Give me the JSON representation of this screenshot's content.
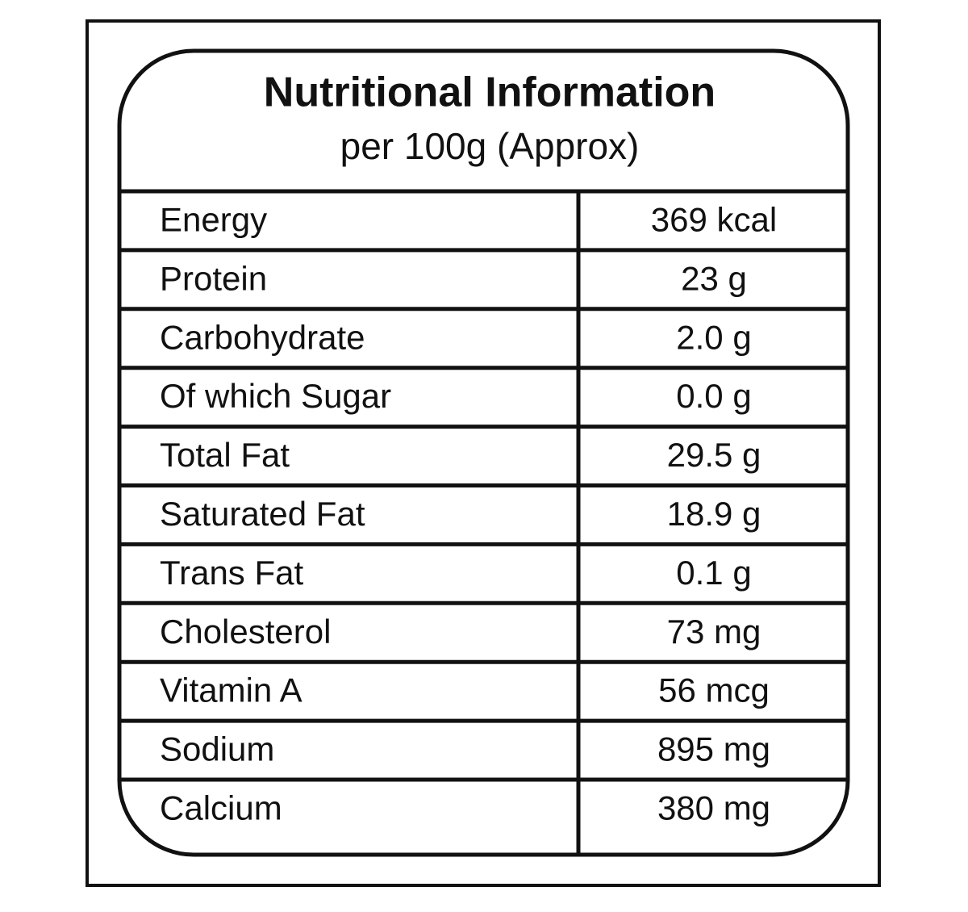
{
  "header": {
    "title": "Nutritional Information",
    "subtitle": "per 100g (Approx)"
  },
  "table": {
    "rows": [
      [
        "Energy",
        "369 kcal"
      ],
      [
        "Protein",
        "23 g"
      ],
      [
        "Carbohydrate",
        "2.0 g"
      ],
      [
        "Of which Sugar",
        "0.0 g"
      ],
      [
        "Total Fat",
        "29.5 g"
      ],
      [
        "Saturated Fat",
        "18.9 g"
      ],
      [
        "Trans Fat",
        "0.1 g"
      ],
      [
        "Cholesterol",
        "73 mg"
      ],
      [
        "Vitamin A",
        "56 mcg"
      ],
      [
        "Sodium",
        "895 mg"
      ],
      [
        "Calcium",
        "380 mg"
      ]
    ]
  }
}
